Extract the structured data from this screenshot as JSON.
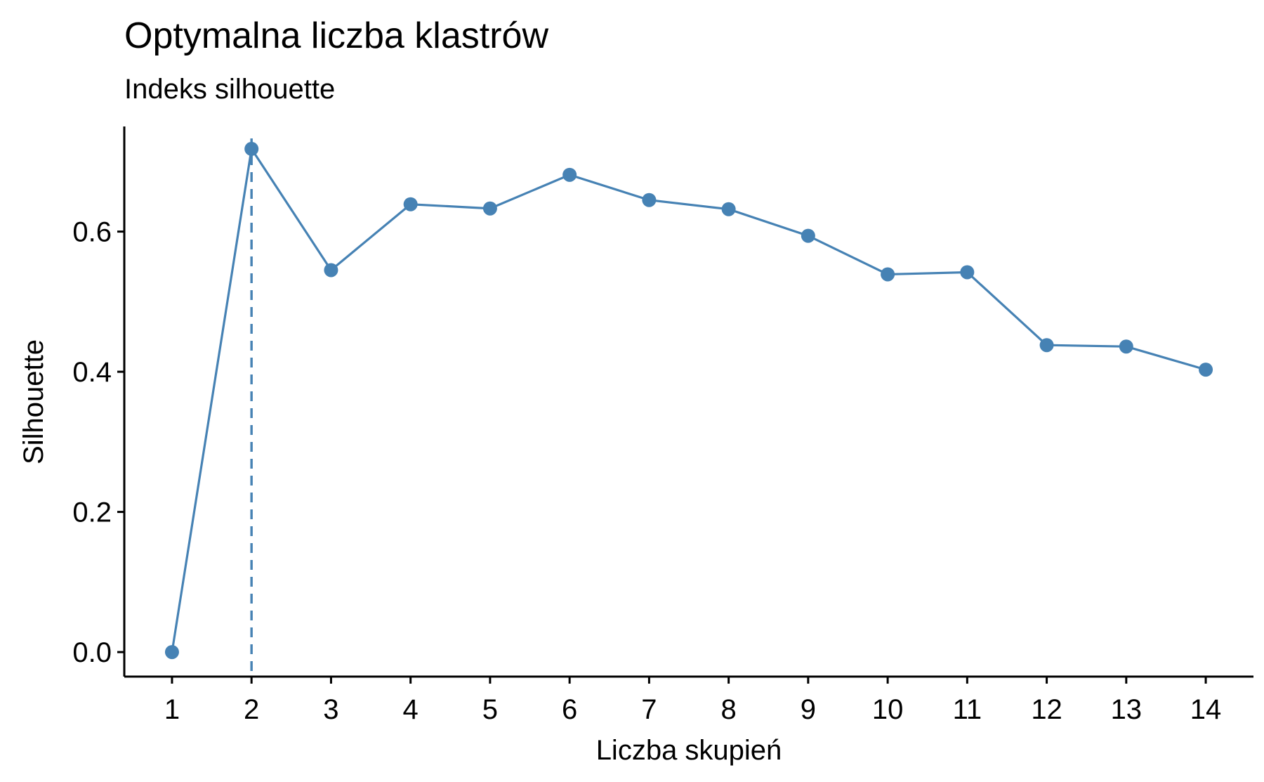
{
  "chart_data": {
    "type": "line",
    "title": "Optymalna liczba klastrów",
    "subtitle": "Indeks silhouette",
    "xlabel": "Liczba skupień",
    "ylabel": "Silhouette",
    "x": [
      1,
      2,
      3,
      4,
      5,
      6,
      7,
      8,
      9,
      10,
      11,
      12,
      13,
      14
    ],
    "x_tick_labels": [
      "1",
      "2",
      "3",
      "4",
      "5",
      "6",
      "7",
      "8",
      "9",
      "10",
      "11",
      "12",
      "13",
      "14"
    ],
    "y_ticks": [
      0.0,
      0.2,
      0.4,
      0.6
    ],
    "y_tick_labels": [
      "0.0",
      "0.2",
      "0.4",
      "0.6"
    ],
    "series": [
      {
        "values": [
          0.0,
          0.718,
          0.545,
          0.639,
          0.633,
          0.681,
          0.645,
          0.632,
          0.594,
          0.539,
          0.542,
          0.438,
          0.436,
          0.403
        ]
      }
    ],
    "reference_line": {
      "orientation": "vertical",
      "x": 2,
      "style": "dashed"
    },
    "xlim": [
      0.4,
      14.6
    ],
    "ylim": [
      -0.035,
      0.75
    ],
    "grid": false,
    "legend": "none",
    "colors": {
      "series": "#4682B4",
      "axis": "#000000"
    }
  }
}
